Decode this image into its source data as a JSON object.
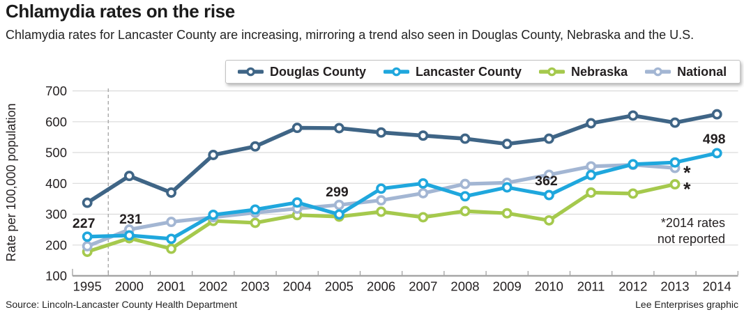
{
  "header": {
    "title": "Chlamydia rates on the rise",
    "subtitle": "Chlamydia rates for Lancaster County are increasing, mirroring a trend also seen in Douglas County, Nebraska and the U.S."
  },
  "chart_data": {
    "type": "line",
    "title": "Chlamydia rates on the rise",
    "xlabel": "",
    "ylabel": "Rate per 100,000 population",
    "ylim": [
      100,
      700
    ],
    "ytick_step": 100,
    "grid": true,
    "legend_position": "top",
    "axis_break_between": [
      "1995",
      "2000"
    ],
    "categories": [
      "1995",
      "2000",
      "2001",
      "2002",
      "2003",
      "2004",
      "2005",
      "2006",
      "2007",
      "2008",
      "2009",
      "2010",
      "2011",
      "2012",
      "2013",
      "2014"
    ],
    "series": [
      {
        "name": "Douglas County",
        "color": "#3f6586",
        "values": [
          337,
          424,
          370,
          492,
          520,
          580,
          579,
          565,
          555,
          545,
          528,
          545,
          595,
          620,
          597,
          624
        ]
      },
      {
        "name": "Lancaster County",
        "color": "#1fa7dd",
        "values": [
          227,
          231,
          220,
          298,
          315,
          338,
          299,
          383,
          400,
          358,
          387,
          362,
          427,
          462,
          468,
          498
        ],
        "point_labels": {
          "1995": "227",
          "2000": "231",
          "2005": "299",
          "2010": "362",
          "2014": "498"
        }
      },
      {
        "name": "Nebraska",
        "color": "#a5c94d",
        "values": [
          178,
          222,
          188,
          278,
          272,
          297,
          292,
          308,
          290,
          310,
          303,
          280,
          370,
          367,
          397,
          null
        ]
      },
      {
        "name": "National",
        "color": "#a3b6d3",
        "values": [
          196,
          250,
          275,
          290,
          305,
          318,
          330,
          345,
          368,
          398,
          402,
          428,
          455,
          460,
          450,
          null
        ]
      }
    ],
    "annotations": {
      "asterisk_points": [
        {
          "series": "National",
          "year": "2013"
        },
        {
          "series": "Nebraska",
          "year": "2013"
        }
      ],
      "note_lines": [
        "*2014 rates",
        "not reported"
      ]
    }
  },
  "footer": {
    "source": "Source: Lincoln-Lancaster County Health Department",
    "credit": "Lee Enterprises graphic"
  }
}
